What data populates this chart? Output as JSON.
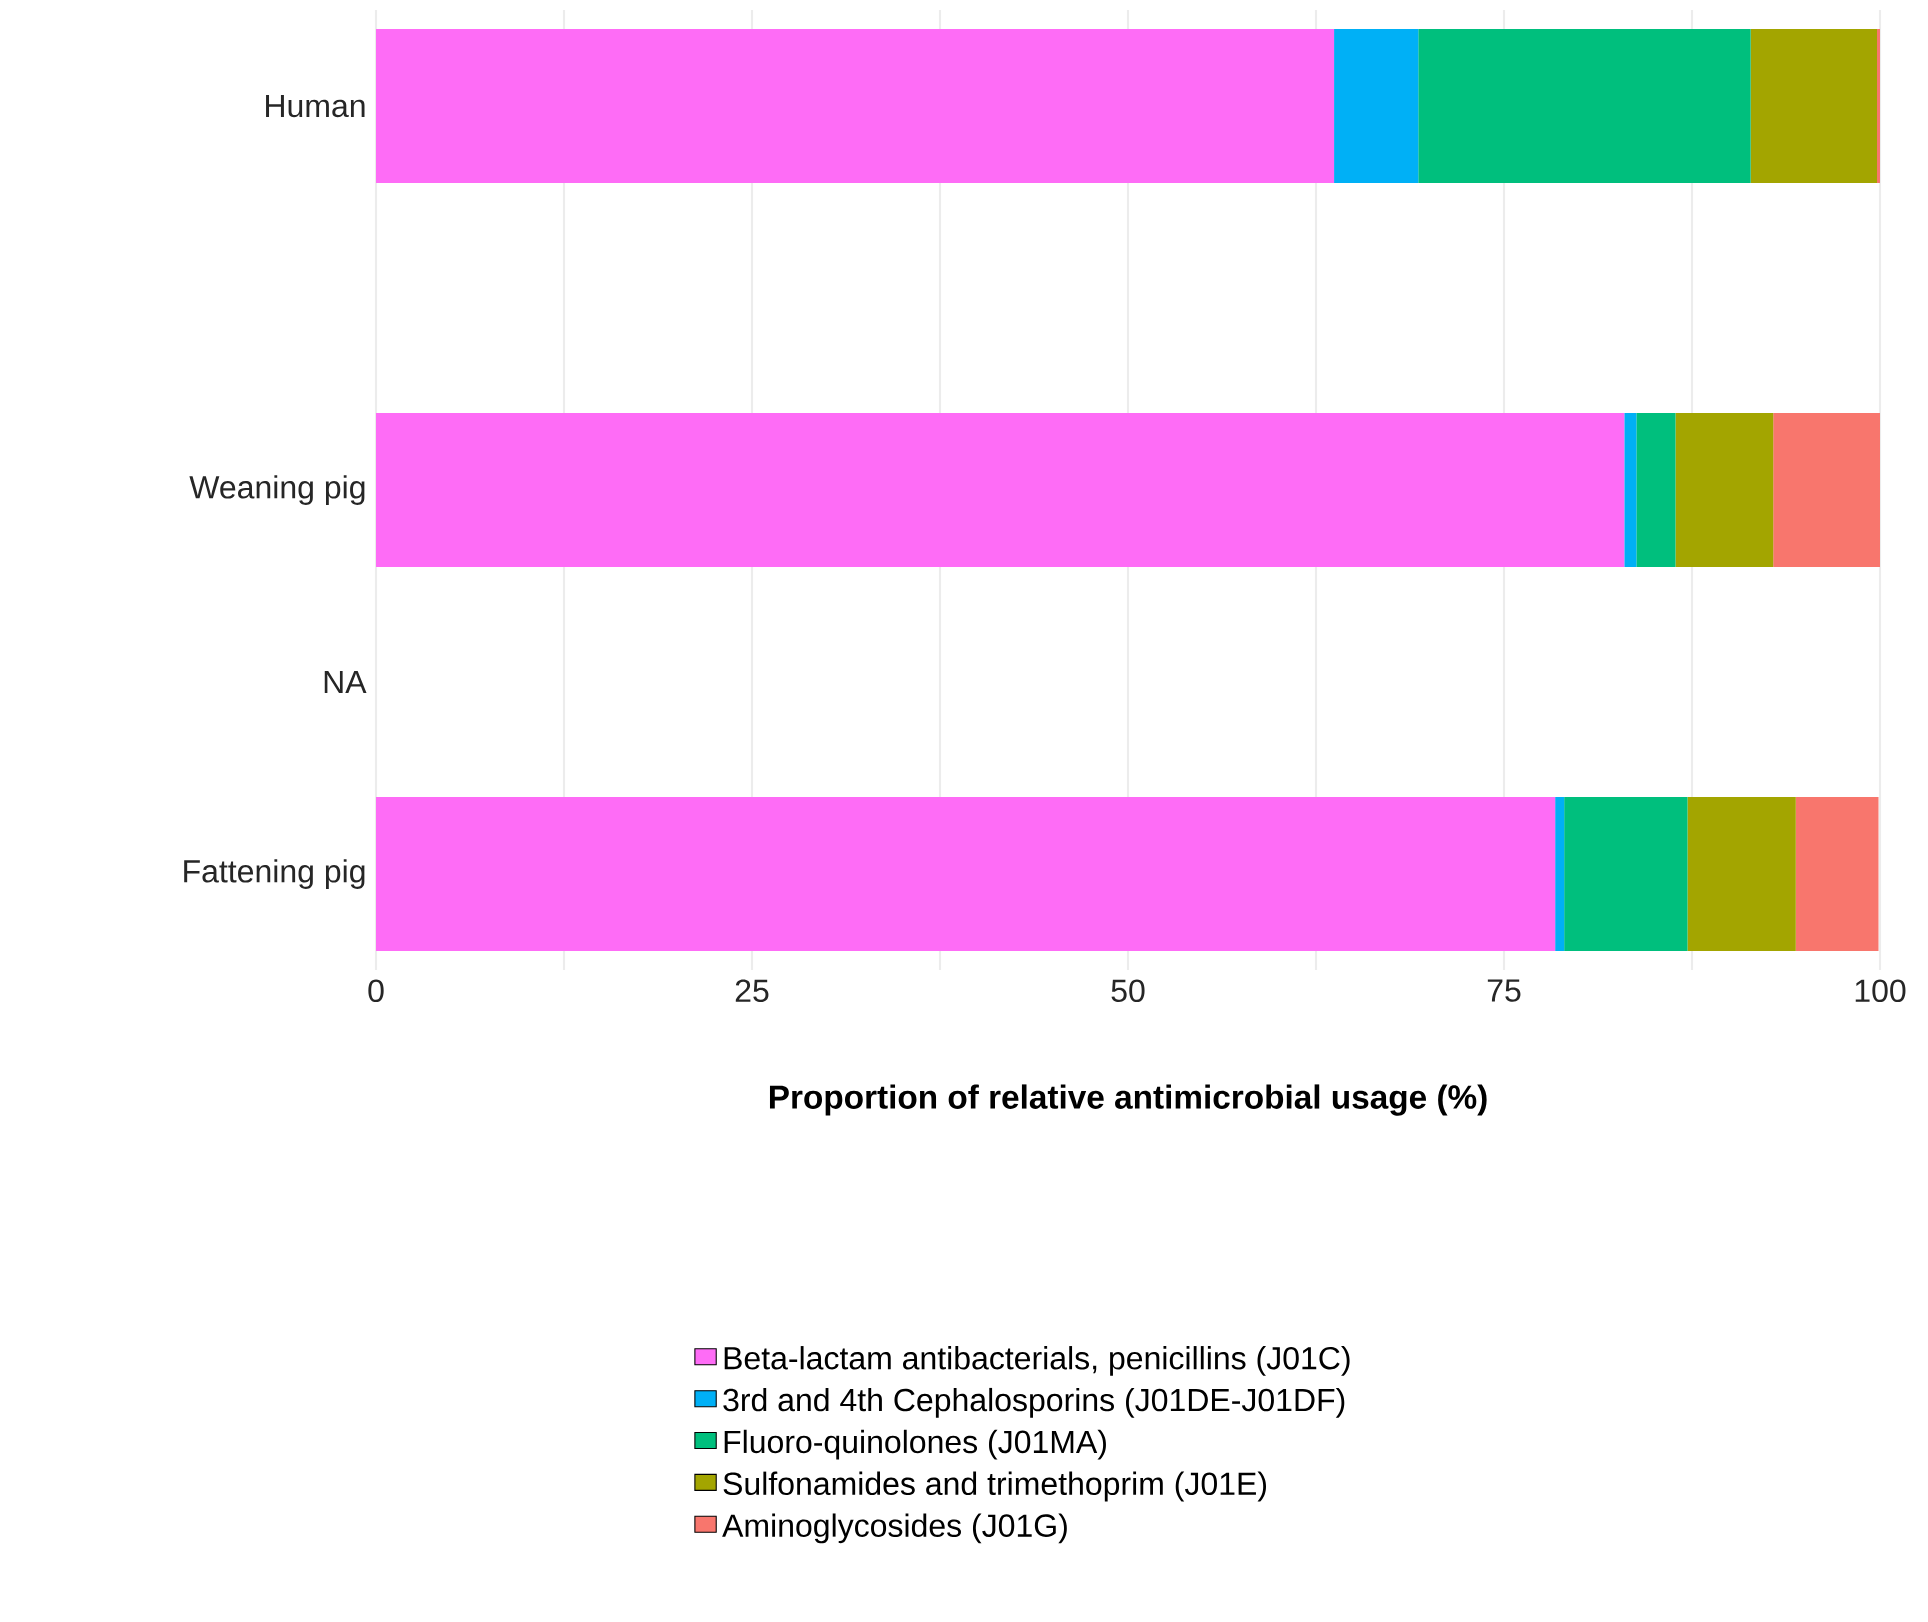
{
  "chart_data": {
    "type": "bar",
    "orientation": "horizontal",
    "stacked": true,
    "xlabel": "Proportion of relative antimicrobial usage (%)",
    "categories": [
      "Human",
      null,
      "Weaning pig",
      "NA",
      "Fattening pig"
    ],
    "series": [
      {
        "name": "Beta-lactam antibacterials, penicillins (J01C)",
        "color": "#fe6cf6",
        "values": [
          63.7,
          null,
          83.0,
          null,
          78.4
        ]
      },
      {
        "name": "3rd and 4th Cephalosporins (J01DE-J01DF)",
        "color": "#00b0f6",
        "values": [
          5.6,
          null,
          0.8,
          null,
          0.6
        ]
      },
      {
        "name": "Fluoro-quinolones (J01MA)",
        "color": "#00bf7d",
        "values": [
          22.1,
          null,
          2.6,
          null,
          8.2
        ]
      },
      {
        "name": "Sulfonamides and trimethoprim (J01E)",
        "color": "#a3a500",
        "values": [
          8.4,
          null,
          6.5,
          null,
          7.2
        ]
      },
      {
        "name": "Aminoglycosides (J01G)",
        "color": "#f8766d",
        "values": [
          0.2,
          null,
          7.1,
          null,
          5.5
        ]
      }
    ],
    "xlim": [
      0,
      100
    ],
    "xticks": [
      0,
      25,
      50,
      75,
      100
    ],
    "grid": "x",
    "legend": "bottom"
  }
}
